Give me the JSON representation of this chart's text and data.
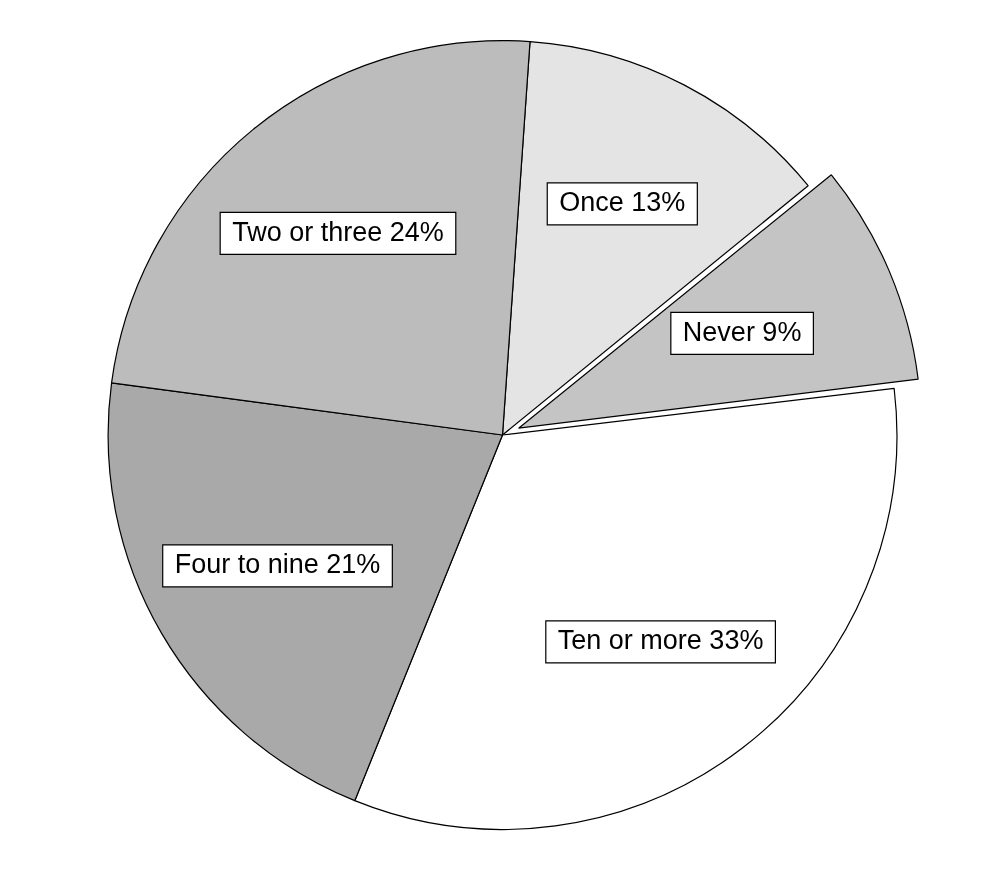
{
  "chart_data": {
    "type": "pie",
    "categories": [
      "Once",
      "Never",
      "Ten or more",
      "Four to nine",
      "Two or three"
    ],
    "values": [
      13,
      9,
      33,
      21,
      24
    ],
    "value_labels": [
      "13%",
      "9%",
      "33%",
      "21%",
      "24%"
    ],
    "colors": [
      "#e4e4e4",
      "#c4c4c4",
      "#ffffff",
      "#a9a9a9",
      "#bcbcbc"
    ],
    "legend": false
  }
}
